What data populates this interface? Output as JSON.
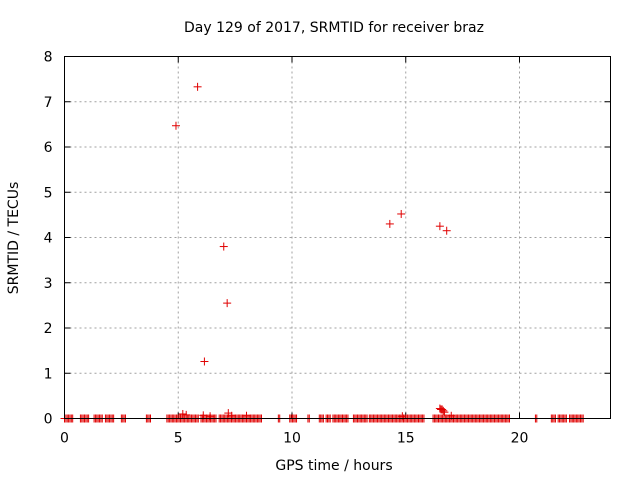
{
  "chart_data": {
    "type": "scatter",
    "title": "Day 129 of 2017, SRMTID for receiver braz",
    "xlabel": "GPS time / hours",
    "ylabel": "SRMTID / TECUs",
    "xlim": [
      0,
      24
    ],
    "ylim": [
      0,
      8
    ],
    "x_ticks": [
      0,
      5,
      10,
      15,
      20
    ],
    "y_ticks": [
      0,
      1,
      2,
      3,
      4,
      5,
      6,
      7,
      8
    ],
    "grid": true,
    "marker": "plus",
    "color": "#e00000",
    "points": [
      [
        4.9,
        6.47
      ],
      [
        5.85,
        7.33
      ],
      [
        7.0,
        3.8
      ],
      [
        7.15,
        2.55
      ],
      [
        6.15,
        1.26
      ],
      [
        14.3,
        4.3
      ],
      [
        14.8,
        4.52
      ],
      [
        16.5,
        4.25
      ],
      [
        16.8,
        4.15
      ],
      [
        5.2,
        0.1
      ],
      [
        5.35,
        0.08
      ],
      [
        6.1,
        0.07
      ],
      [
        6.4,
        0.05
      ],
      [
        7.2,
        0.12
      ],
      [
        7.35,
        0.06
      ],
      [
        8.0,
        0.06
      ],
      [
        14.85,
        0.05
      ],
      [
        16.5,
        0.22
      ],
      [
        16.55,
        0.2
      ],
      [
        16.6,
        0.2
      ],
      [
        16.65,
        0.17
      ],
      [
        16.7,
        0.14
      ],
      [
        17.0,
        0.06
      ]
    ],
    "baseline_ranges": [
      [
        0.0,
        0.4
      ],
      [
        0.7,
        1.1
      ],
      [
        1.3,
        1.7
      ],
      [
        1.8,
        2.2
      ],
      [
        2.5,
        2.7
      ],
      [
        3.6,
        3.8
      ],
      [
        4.5,
        5.9
      ],
      [
        6.0,
        6.7
      ],
      [
        6.8,
        8.7
      ],
      [
        9.4,
        9.5
      ],
      [
        9.9,
        10.2
      ],
      [
        10.7,
        10.8
      ],
      [
        11.2,
        11.4
      ],
      [
        11.5,
        11.7
      ],
      [
        11.8,
        12.5
      ],
      [
        12.7,
        13.3
      ],
      [
        13.4,
        15.8
      ],
      [
        16.2,
        19.6
      ],
      [
        20.7,
        20.8
      ],
      [
        21.4,
        21.6
      ],
      [
        21.7,
        22.1
      ],
      [
        22.2,
        22.8
      ]
    ],
    "baseline_value": 0
  }
}
